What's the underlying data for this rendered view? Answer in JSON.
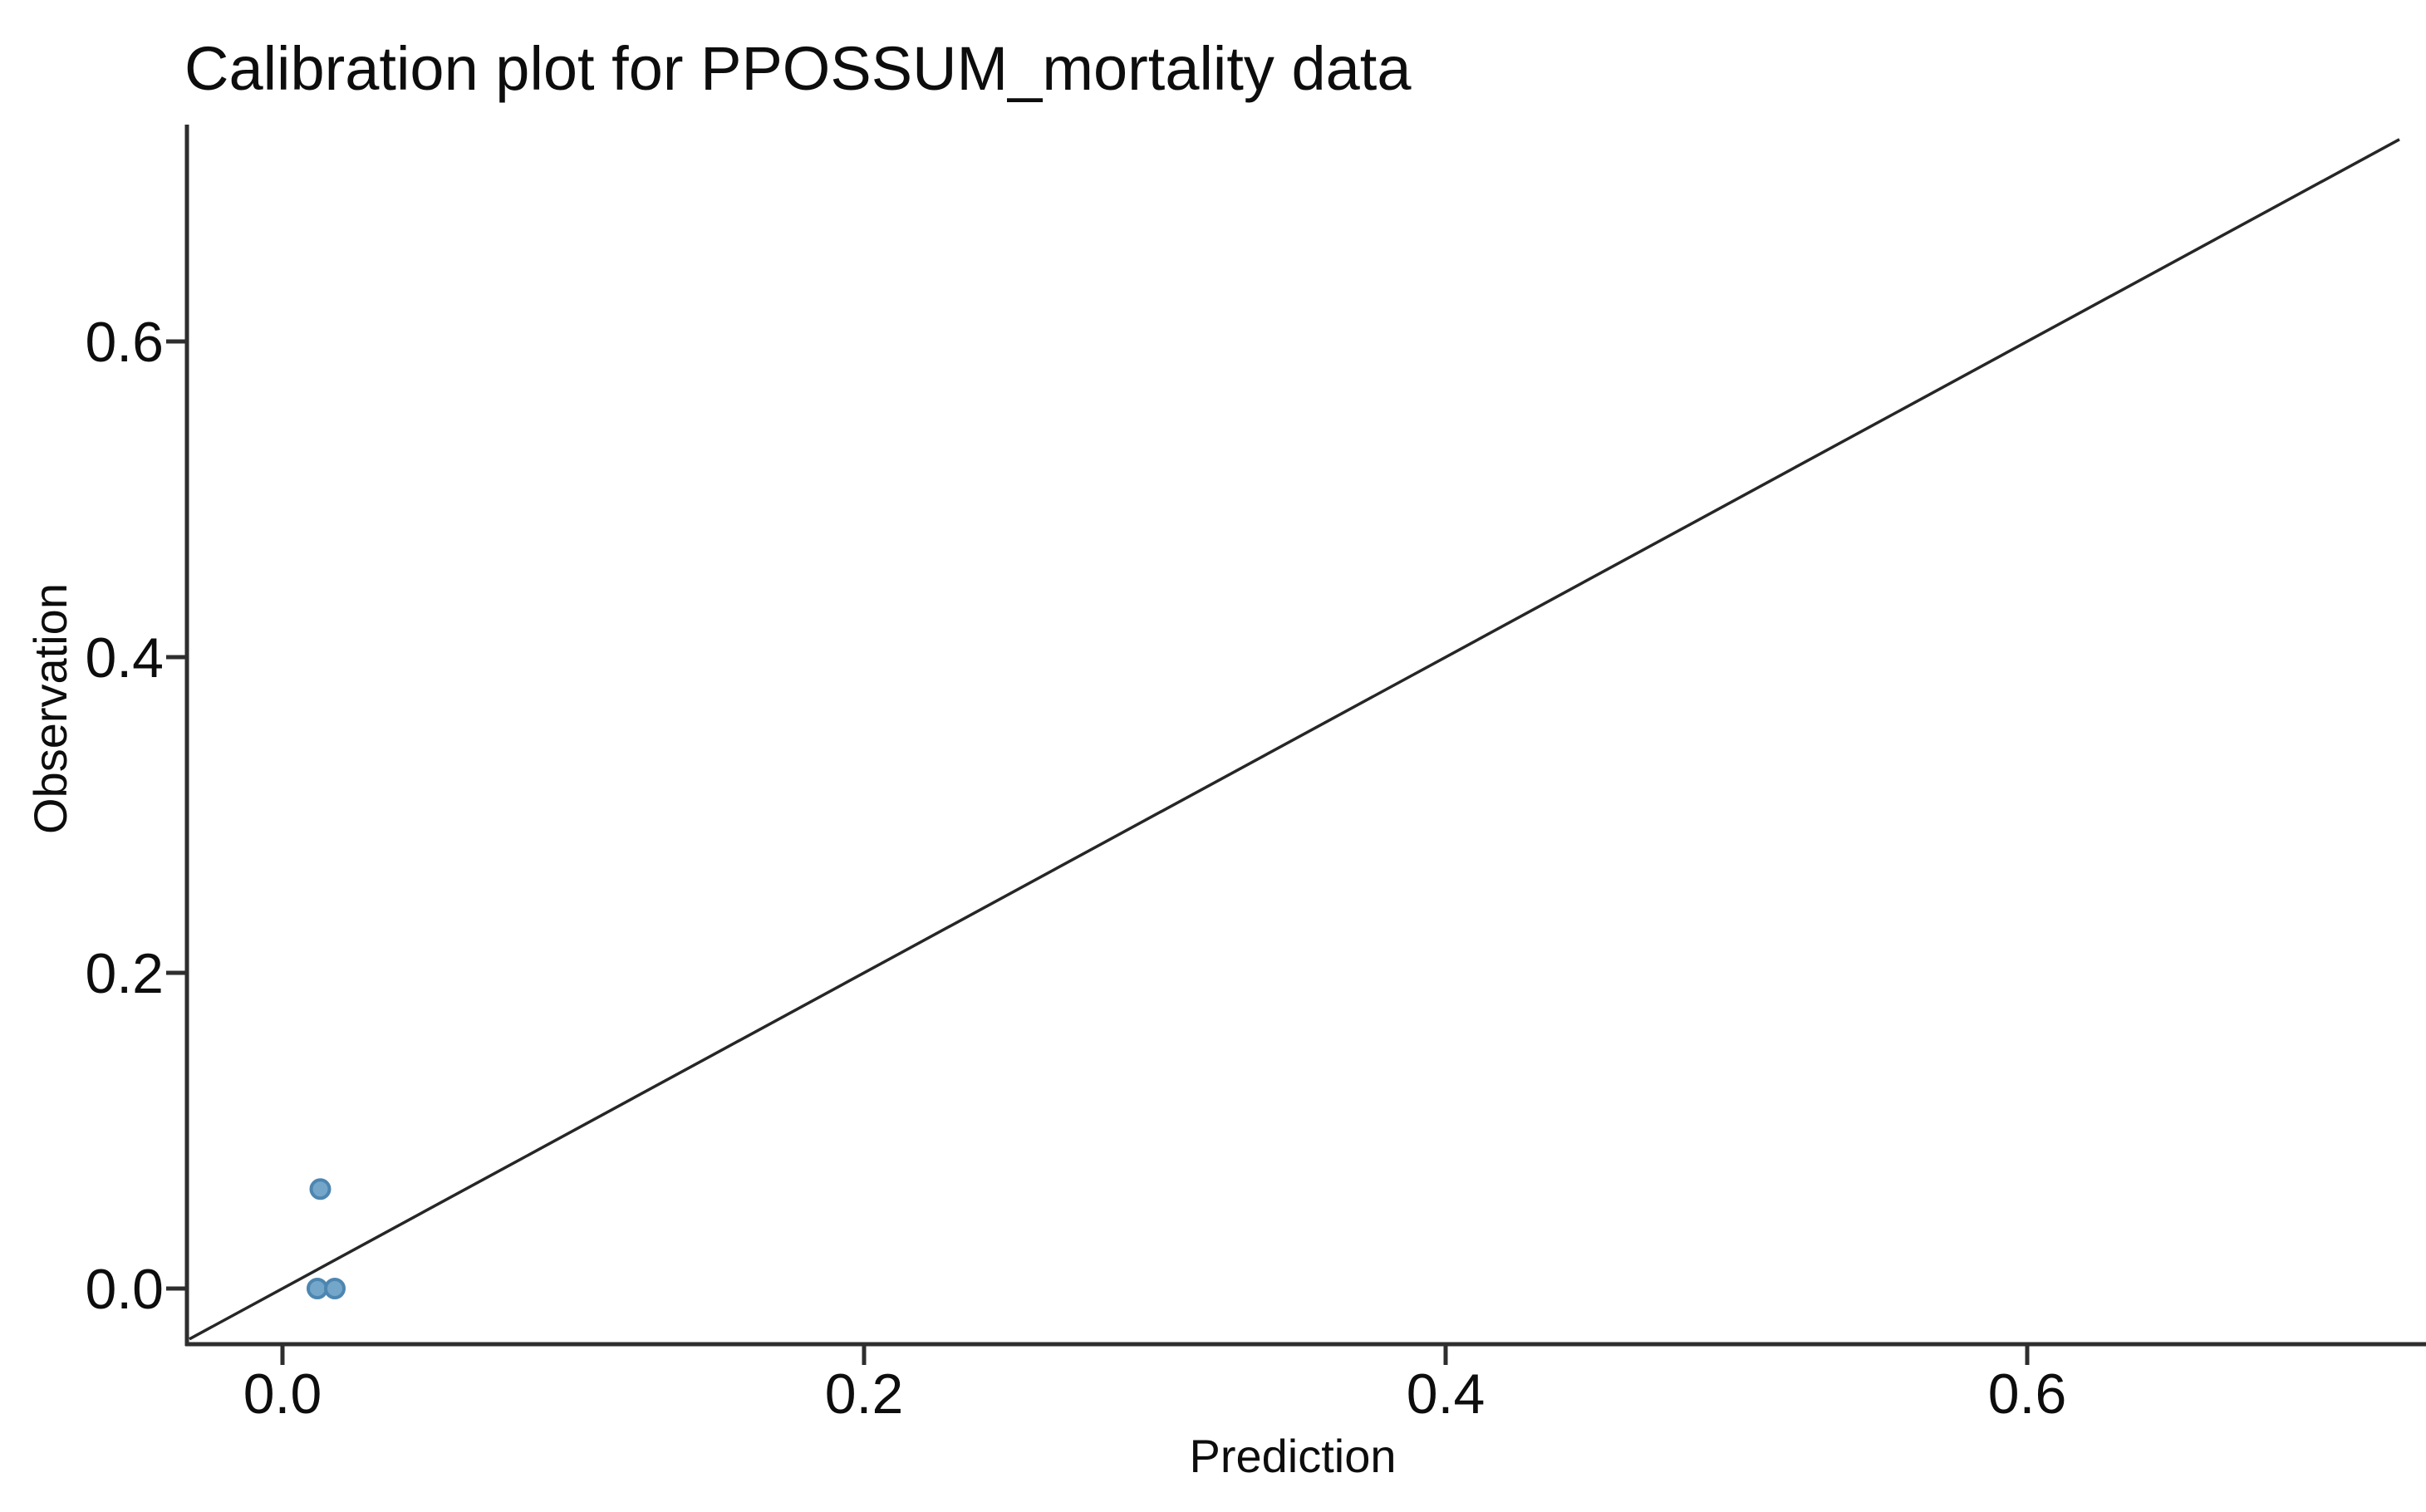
{
  "chart_data": {
    "type": "scatter",
    "title": "Calibration plot for PPOSSUM_mortality data",
    "xlabel": "Prediction",
    "ylabel": "Observation",
    "x_ticks": [
      0.0,
      0.2,
      0.4,
      0.6
    ],
    "y_ticks": [
      0.0,
      0.2,
      0.4,
      0.6
    ],
    "xlim": [
      -0.033,
      0.745
    ],
    "ylim": [
      -0.035,
      0.737
    ],
    "grid": false,
    "legend": null,
    "points": [
      {
        "x": 0.013,
        "y": 0.063
      },
      {
        "x": 0.012,
        "y": 0.0
      },
      {
        "x": 0.018,
        "y": 0.0
      }
    ],
    "identity_line": {
      "from": -0.032,
      "to": 0.728
    },
    "colors": {
      "point_fill": "#74a6ca",
      "point_edge": "#4d86b0",
      "line": "#262626",
      "axis": "#2e2e2e",
      "text": "#0d0d0d"
    }
  }
}
